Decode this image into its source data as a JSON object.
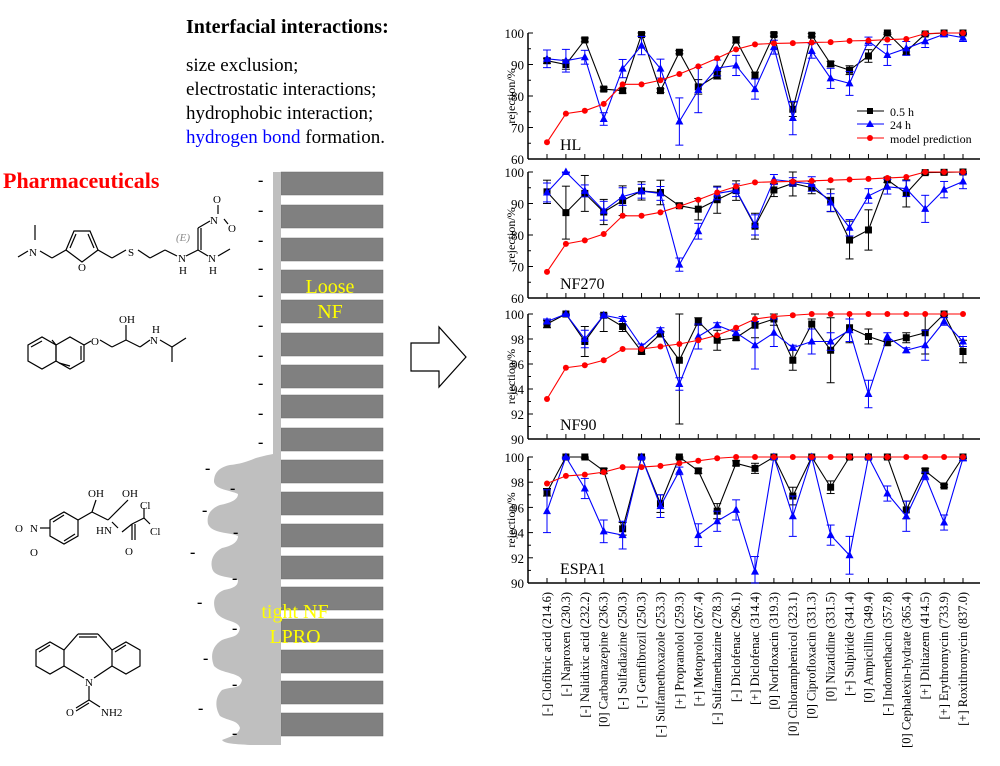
{
  "header": {
    "title": "Interfacial interactions:",
    "mechanisms": [
      {
        "text": "size exclusion;",
        "highlight": ""
      },
      {
        "text": "electrostatic interactions;",
        "highlight": ""
      },
      {
        "text": "hydrophobic interaction;",
        "highlight": ""
      },
      {
        "text": " formation.",
        "highlight": "hydrogen bond"
      }
    ],
    "highlight_color": "#0000ff"
  },
  "left_panel": {
    "label": "Pharmaceuticals",
    "label_color": "#ff0000",
    "molecules": [
      {
        "name": "ranitidine",
        "atom_labels": [
          "N",
          "O",
          "S",
          "N",
          "H",
          "N",
          "H",
          "(E)",
          "N",
          "O",
          "O"
        ]
      },
      {
        "name": "propranolol",
        "atom_labels": [
          "O",
          "OH",
          "N",
          "H"
        ]
      },
      {
        "name": "chloramphenicol",
        "atom_labels": [
          "OH",
          "OH",
          "Cl",
          "Cl",
          "HN",
          "O",
          "O",
          "N",
          "O"
        ]
      },
      {
        "name": "carbamazepine",
        "atom_labels": [
          "N",
          "O",
          "NH2"
        ]
      }
    ],
    "membrane": {
      "loose_label_line1": "Loose",
      "loose_label_line2": "NF",
      "tight_label_line1": "tight NF",
      "tight_label_line2": "LPRO",
      "label_color": "#ffff00",
      "charge_symbol": "-"
    }
  },
  "chart_data": {
    "type": "line",
    "ylabel": "rejection/%",
    "categories": [
      "[-] Clofibric acid (214.6)",
      "[-] Naproxen (230.3)",
      "[-] Nalidixic acid (232.2)",
      "[0] Carbamazepine (236.3)",
      "[-] Sulfadiazine (250.3)",
      "[-] Gemfibrozil (250.3)",
      "[-] Sulfamethoxazole (253.3)",
      "[+] Propranolol (259.3)",
      "[+] Metoprolol (267.4)",
      "[-] Sulfamethazine (278.3)",
      "[-] Diclofenac (296.1)",
      "[+] Diclofenac (314.4)",
      "[0] Norfloxacin (319.3)",
      "[0] Chloramphenicol (323.1)",
      "[0] Ciprofloxacin (331.3)",
      "[0] Nizatidine (331.5)",
      "[+] Sulpiride (341.4)",
      "[0] Ampicillin (349.4)",
      "[-] Indomethacin (357.8)",
      "[0] Cephalexin-hydrate (365.4)",
      "[+] Diltiazem (414.5)",
      "[+] Erythromycin (733.9)",
      "[+] Roxithromycin (837.0)"
    ],
    "legend": {
      "position": "inside-bottom-right of top panel",
      "entries": [
        {
          "name": "0.5 h",
          "color": "#000000",
          "marker": "square"
        },
        {
          "name": "24 h",
          "color": "#0000ff",
          "marker": "triangle"
        },
        {
          "name": "model prediction",
          "color": "#ff0000",
          "marker": "circle"
        }
      ]
    },
    "panels": [
      {
        "label": "HL",
        "ylim": [
          60,
          100
        ],
        "yticks": [
          "60",
          "70",
          "80",
          "90",
          "100"
        ],
        "series": [
          {
            "name": "0.5 h",
            "values": [
              91.2,
              90.0,
              97.8,
              82.2,
              81.7,
              99.5,
              81.7,
              93.9,
              82.9,
              86.6,
              97.8,
              86.5,
              99.5,
              75.8,
              99.3,
              90.2,
              88.2,
              92.7,
              100.0,
              94.1,
              99.7,
              100.0,
              100.0
            ],
            "errors": [
              0.8,
              1.5,
              0.6,
              0.6,
              0.8,
              0.5,
              0.6,
              0.5,
              2.3,
              1.2,
              1.0,
              1.1,
              0.5,
              2.3,
              0.5,
              0.8,
              1.4,
              2.0,
              0.5,
              1.0,
              0.5,
              0.5,
              0.5
            ]
          },
          {
            "name": "24 h",
            "values": [
              91.8,
              91.2,
              92.3,
              72.7,
              88.7,
              96.0,
              88.7,
              71.9,
              81.9,
              88.9,
              89.7,
              82.2,
              95.5,
              73.0,
              94.3,
              85.6,
              84.0,
              97.4,
              93.0,
              95.1,
              97.4,
              99.6,
              98.5
            ],
            "errors": [
              2.8,
              3.6,
              2.2,
              2.0,
              2.9,
              2.9,
              3.0,
              7.5,
              7.2,
              2.5,
              3.2,
              3.2,
              2.2,
              5.3,
              2.3,
              3.2,
              3.8,
              1.3,
              3.3,
              2.2,
              2.0,
              0.8,
              1.2
            ]
          },
          {
            "name": "model prediction",
            "values": [
              65.3,
              74.4,
              75.3,
              77.5,
              83.7,
              83.7,
              85.0,
              87.0,
              89.4,
              92.0,
              94.8,
              96.4,
              96.7,
              96.8,
              97.0,
              97.1,
              97.5,
              97.6,
              97.9,
              98.1,
              99.8,
              100.0,
              100.0
            ]
          }
        ]
      },
      {
        "label": "NF270",
        "ylim": [
          60,
          100
        ],
        "yticks": [
          "60",
          "70",
          "80",
          "90",
          "100"
        ],
        "series": [
          {
            "name": "0.5 h",
            "values": [
              93.7,
              87.1,
              93.2,
              87.3,
              90.9,
              94.0,
              93.5,
              89.3,
              88.2,
              91.2,
              94.1,
              82.8,
              94.3,
              96.4,
              95.0,
              91.0,
              78.4,
              81.6,
              97.5,
              93.2,
              99.8,
              99.9,
              100.0
            ],
            "errors": [
              3.7,
              8.4,
              5.7,
              4.0,
              4.7,
              2.9,
              3.9,
              0.5,
              3.4,
              4.3,
              3.1,
              4.1,
              2.1,
              4.0,
              1.9,
              3.6,
              6.0,
              6.4,
              0.8,
              4.3,
              0.5,
              0.5,
              0.5
            ]
          },
          {
            "name": "24 h",
            "values": [
              93.5,
              100.0,
              94.0,
              87.7,
              92.2,
              93.9,
              93.2,
              70.6,
              81.2,
              93.2,
              94.2,
              83.2,
              97.6,
              96.9,
              96.2,
              90.3,
              82.3,
              92.4,
              95.3,
              94.7,
              88.3,
              94.4,
              97.0
            ],
            "errors": [
              3.0,
              0.3,
              1.9,
              3.0,
              2.8,
              2.2,
              2.2,
              2.1,
              2.5,
              2.0,
              2.0,
              3.2,
              1.6,
              1.3,
              2.3,
              2.8,
              2.6,
              2.3,
              2.3,
              2.5,
              4.3,
              2.6,
              2.3
            ]
          },
          {
            "name": "model prediction",
            "values": [
              68.3,
              77.2,
              78.3,
              80.3,
              86.1,
              86.1,
              87.2,
              89.1,
              91.2,
              93.5,
              95.4,
              96.7,
              96.9,
              97.0,
              97.2,
              97.4,
              97.6,
              97.8,
              98.1,
              98.4,
              100.0,
              100.0,
              100.0
            ]
          }
        ]
      },
      {
        "label": "NF90",
        "ylim": [
          90,
          100
        ],
        "yticks": [
          "90",
          "92",
          "94",
          "96",
          "98",
          "100"
        ],
        "series": [
          {
            "name": "0.5 h",
            "values": [
              99.2,
              100.0,
              97.8,
              99.9,
              99.0,
              97.0,
              98.4,
              96.3,
              99.4,
              97.9,
              98.1,
              99.1,
              99.6,
              96.3,
              99.2,
              97.1,
              98.9,
              98.2,
              97.7,
              98.1,
              98.5,
              100.0,
              97.0
            ],
            "errors": [
              0.3,
              0.1,
              1.2,
              1.3,
              0.4,
              0.2,
              0.2,
              5.1,
              0.3,
              0.8,
              0.2,
              1.0,
              0.5,
              0.8,
              0.4,
              2.6,
              1.2,
              0.6,
              0.2,
              0.4,
              1.7,
              0.1,
              0.9
            ]
          },
          {
            "name": "24 h",
            "values": [
              99.4,
              100.0,
              98.0,
              99.9,
              99.6,
              97.4,
              98.7,
              94.4,
              98.2,
              99.1,
              98.5,
              97.5,
              98.5,
              97.3,
              97.8,
              97.8,
              98.7,
              93.6,
              98.2,
              97.1,
              97.5,
              99.4,
              97.8
            ],
            "errors": [
              0.2,
              0.1,
              0.7,
              0.2,
              0.2,
              0.2,
              0.2,
              0.5,
              1.0,
              0.2,
              0.2,
              1.9,
              1.1,
              0.2,
              1.0,
              0.7,
              0.9,
              1.1,
              0.3,
              0.2,
              1.2,
              0.3,
              0.4
            ]
          },
          {
            "name": "model prediction",
            "values": [
              93.2,
              95.7,
              95.9,
              96.3,
              97.2,
              97.2,
              97.4,
              97.6,
              97.9,
              98.3,
              98.9,
              99.6,
              99.8,
              99.9,
              100.0,
              100.0,
              100.0,
              100.0,
              100.0,
              100.0,
              100.0,
              100.0,
              100.0
            ]
          }
        ]
      },
      {
        "label": "ESPA1",
        "ylim": [
          90,
          100
        ],
        "yticks": [
          "90",
          "92",
          "94",
          "96",
          "98",
          "100"
        ],
        "series": [
          {
            "name": "0.5 h",
            "values": [
              97.2,
              100.0,
              100.0,
              98.9,
              94.3,
              100.0,
              96.3,
              100.0,
              98.9,
              95.7,
              99.5,
              99.1,
              100.0,
              96.9,
              100.0,
              97.6,
              100.0,
              100.0,
              100.0,
              95.8,
              98.9,
              97.7,
              100.0
            ],
            "errors": [
              0.3,
              0.1,
              0.1,
              0.2,
              0.5,
              0.1,
              0.7,
              0.1,
              0.2,
              0.6,
              0.2,
              0.4,
              0.1,
              0.7,
              0.1,
              0.5,
              0.1,
              0.1,
              0.1,
              0.7,
              0.2,
              0.1,
              0.1
            ]
          },
          {
            "name": "24 h",
            "values": [
              95.7,
              100.0,
              97.5,
              94.1,
              93.8,
              100.0,
              96.1,
              98.9,
              93.8,
              94.9,
              95.8,
              90.9,
              100.0,
              95.3,
              100.0,
              93.8,
              92.2,
              100.0,
              97.1,
              95.3,
              98.5,
              94.8,
              99.9
            ],
            "errors": [
              1.7,
              0.1,
              0.8,
              0.9,
              1.1,
              0.1,
              0.9,
              0.3,
              0.9,
              0.8,
              0.8,
              1.2,
              0.1,
              1.6,
              0.1,
              0.8,
              1.5,
              0.1,
              0.6,
              1.2,
              0.3,
              0.6,
              0.2
            ]
          },
          {
            "name": "model prediction",
            "values": [
              97.9,
              98.5,
              98.6,
              98.8,
              99.2,
              99.2,
              99.3,
              99.5,
              99.7,
              99.9,
              100.0,
              100.0,
              100.0,
              100.0,
              100.0,
              100.0,
              100.0,
              100.0,
              100.0,
              100.0,
              100.0,
              100.0,
              100.0
            ]
          }
        ]
      }
    ]
  }
}
